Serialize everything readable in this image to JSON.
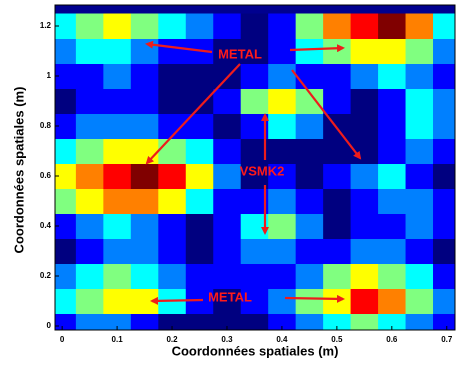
{
  "chart_data": {
    "type": "heatmap",
    "x_label": "Coordonnées spatiales (m)",
    "y_label": "Coordonnées spatiales (m)",
    "colormap": "jet",
    "x": [
      0,
      0.05,
      0.1,
      0.15,
      0.2,
      0.25,
      0.3,
      0.35,
      0.4,
      0.45,
      0.5,
      0.55,
      0.6,
      0.65,
      0.7
    ],
    "y": [
      0,
      0.1,
      0.2,
      0.3,
      0.4,
      0.5,
      0.6,
      0.7,
      0.8,
      0.9,
      1,
      1.1,
      1.2
    ],
    "z": [
      [
        3,
        4,
        4,
        3,
        2,
        2,
        2,
        2,
        3,
        4,
        5,
        6,
        5,
        4,
        3
      ],
      [
        5,
        6,
        7,
        7,
        5,
        3,
        2,
        3,
        4,
        6,
        7,
        9,
        8,
        6,
        4
      ],
      [
        4,
        5,
        6,
        5,
        4,
        3,
        3,
        3,
        3,
        4,
        6,
        7,
        6,
        5,
        3
      ],
      [
        2,
        3,
        4,
        4,
        3,
        2,
        3,
        4,
        4,
        3,
        3,
        4,
        4,
        3,
        2
      ],
      [
        3,
        4,
        5,
        4,
        3,
        2,
        3,
        5,
        6,
        4,
        2,
        3,
        3,
        4,
        3
      ],
      [
        6,
        7,
        8,
        8,
        7,
        5,
        3,
        3,
        4,
        3,
        2,
        3,
        4,
        4,
        3
      ],
      [
        7,
        8,
        9,
        10,
        9,
        7,
        4,
        2,
        3,
        2,
        3,
        4,
        5,
        3,
        2
      ],
      [
        5,
        6,
        7,
        7,
        6,
        5,
        3,
        2,
        2,
        2,
        2,
        2,
        3,
        4,
        3
      ],
      [
        3,
        4,
        4,
        4,
        3,
        3,
        2,
        3,
        5,
        4,
        2,
        2,
        3,
        5,
        4
      ],
      [
        2,
        3,
        3,
        3,
        2,
        2,
        3,
        6,
        7,
        6,
        3,
        2,
        3,
        5,
        4
      ],
      [
        3,
        3,
        4,
        3,
        2,
        2,
        2,
        3,
        4,
        3,
        3,
        4,
        5,
        4,
        3
      ],
      [
        4,
        5,
        5,
        4,
        3,
        3,
        2,
        2,
        3,
        5,
        6,
        7,
        7,
        6,
        4
      ],
      [
        5,
        6,
        7,
        6,
        5,
        4,
        3,
        2,
        3,
        6,
        8,
        9,
        10,
        8,
        5
      ]
    ],
    "xlim": [
      -0.013,
      0.715
    ],
    "ylim": [
      -0.016,
      1.284
    ],
    "xticks": [
      0,
      0.1,
      0.2,
      0.3,
      0.4,
      0.5,
      0.6,
      0.7
    ],
    "yticks": [
      0,
      0.2,
      0.4,
      0.6,
      0.8,
      1,
      1.2
    ],
    "annotations": [
      "METAL",
      "VSMK2",
      "METAL"
    ]
  }
}
